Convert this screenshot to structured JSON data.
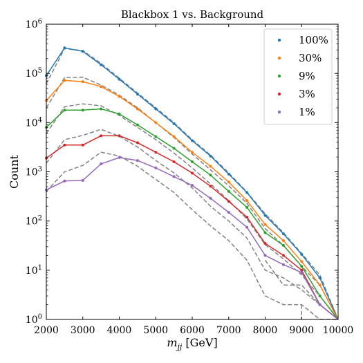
{
  "chart_data": {
    "type": "line",
    "title": "Blackbox 1 vs. Background",
    "xlabel": "m_jj [GeV]",
    "ylabel": "Count",
    "xlim": [
      2000,
      10000
    ],
    "ylim": [
      1,
      1000000
    ],
    "yscale": "log",
    "x_ticks": [
      2000,
      3000,
      4000,
      5000,
      6000,
      7000,
      8000,
      9000,
      10000
    ],
    "y_ticks": [
      1,
      10,
      100,
      1000,
      10000,
      100000,
      1000000
    ],
    "y_tick_labels": [
      "10^0",
      "10^1",
      "10^2",
      "10^3",
      "10^4",
      "10^5",
      "10^6"
    ],
    "grid": false,
    "legend_position": "top-right",
    "x": [
      2000,
      2500,
      3000,
      3500,
      4000,
      4500,
      5000,
      5500,
      6000,
      6500,
      7000,
      7500,
      8000,
      8500,
      9000,
      9500,
      10000
    ],
    "series": [
      {
        "name": "100%",
        "color": "#1f77b4",
        "values": [
          90000,
          330000,
          280000,
          150000,
          76000,
          38000,
          19000,
          9500,
          4300,
          2100,
          900,
          380,
          130,
          55,
          21,
          7,
          1
        ]
      },
      {
        "name": "30%",
        "color": "#ff7f0e",
        "values": [
          28000,
          72000,
          68000,
          54000,
          34000,
          19000,
          10000,
          5200,
          2500,
          1300,
          620,
          260,
          85,
          40,
          15,
          5,
          1
        ]
      },
      {
        "name": "9%",
        "color": "#2ca02c",
        "values": [
          8000,
          18000,
          18000,
          19000,
          15000,
          9000,
          5200,
          3000,
          1600,
          860,
          400,
          190,
          58,
          32,
          12,
          3,
          1
        ]
      },
      {
        "name": "3%",
        "color": "#d62728",
        "values": [
          1900,
          3500,
          3500,
          5400,
          5400,
          3900,
          2500,
          1600,
          940,
          510,
          250,
          120,
          35,
          20,
          10,
          2,
          1
        ]
      },
      {
        "name": "1%",
        "color": "#9467bd",
        "values": [
          430,
          650,
          670,
          1450,
          1950,
          1700,
          1200,
          800,
          530,
          290,
          150,
          75,
          20,
          13,
          9,
          2,
          1
        ]
      }
    ],
    "background_series": [
      {
        "color": "#808080",
        "values": [
          62000,
          320000,
          290000,
          160000,
          80000,
          40000,
          20000,
          10000,
          4500,
          2200,
          950,
          390,
          140,
          58,
          22,
          8,
          1
        ]
      },
      {
        "color": "#808080",
        "values": [
          20000,
          82000,
          84000,
          58000,
          36000,
          20000,
          10000,
          5000,
          2300,
          1100,
          520,
          230,
          70,
          32,
          12,
          5,
          1
        ]
      },
      {
        "color": "#808080",
        "values": [
          6000,
          21000,
          24000,
          22000,
          14000,
          8000,
          4500,
          2400,
          1200,
          570,
          260,
          110,
          33,
          17,
          8,
          3,
          1
        ]
      },
      {
        "color": "#808080",
        "values": [
          1500,
          4500,
          5500,
          7300,
          5300,
          3200,
          1700,
          950,
          470,
          200,
          100,
          45,
          10,
          7,
          4,
          2,
          1
        ]
      },
      {
        "color": "#808080",
        "values": [
          400,
          1000,
          1350,
          2500,
          2100,
          1300,
          700,
          380,
          170,
          80,
          40,
          16,
          3,
          2,
          2,
          1,
          1
        ]
      },
      {
        "color": "#808080",
        "values": [
          null,
          null,
          null,
          null,
          null,
          null,
          null,
          null,
          null,
          null,
          null,
          null,
          16,
          5,
          5,
          2,
          1
        ]
      }
    ]
  }
}
